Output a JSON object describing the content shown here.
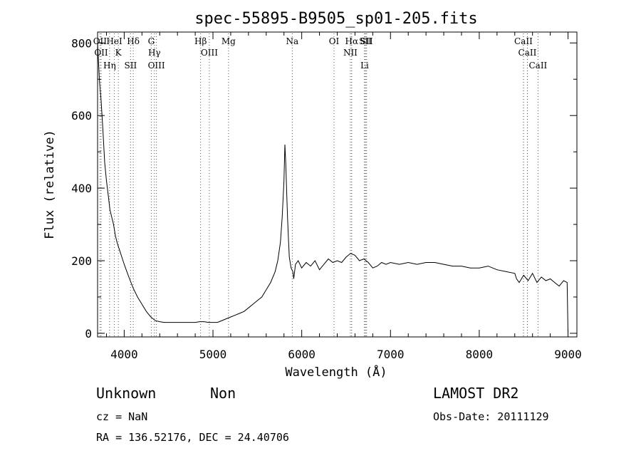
{
  "chart_data": {
    "type": "line",
    "title": "spec-55895-B9505_sp01-205.fits",
    "xlabel": "Wavelength (Å)",
    "ylabel": "Flux (relative)",
    "xlim": [
      3700,
      9100
    ],
    "ylim": [
      -10,
      830
    ],
    "xticks": [
      4000,
      5000,
      6000,
      7000,
      8000,
      9000
    ],
    "yticks": [
      0,
      200,
      400,
      600,
      800
    ],
    "spectrum": {
      "x": [
        3700,
        3720,
        3740,
        3760,
        3780,
        3800,
        3820,
        3840,
        3860,
        3880,
        3900,
        3920,
        3940,
        3960,
        3980,
        4000,
        4030,
        4060,
        4100,
        4150,
        4200,
        4250,
        4300,
        4350,
        4400,
        4450,
        4500,
        4600,
        4700,
        4800,
        4850,
        4900,
        4950,
        5000,
        5050,
        5100,
        5150,
        5200,
        5250,
        5300,
        5350,
        5400,
        5450,
        5500,
        5550,
        5600,
        5650,
        5700,
        5730,
        5760,
        5780,
        5800,
        5810,
        5820,
        5830,
        5840,
        5850,
        5860,
        5880,
        5900,
        5910,
        5930,
        5960,
        6000,
        6050,
        6100,
        6150,
        6200,
        6250,
        6300,
        6350,
        6400,
        6450,
        6500,
        6550,
        6600,
        6650,
        6700,
        6750,
        6800,
        6850,
        6900,
        6950,
        7000,
        7100,
        7200,
        7300,
        7400,
        7500,
        7600,
        7700,
        7800,
        7900,
        8000,
        8100,
        8200,
        8300,
        8400,
        8420,
        8450,
        8500,
        8550,
        8600,
        8650,
        8700,
        8750,
        8800,
        8850,
        8900,
        8950,
        8990,
        9000
      ],
      "y": [
        800,
        700,
        640,
        560,
        470,
        420,
        380,
        340,
        320,
        300,
        270,
        250,
        235,
        220,
        205,
        190,
        170,
        150,
        125,
        100,
        80,
        60,
        45,
        35,
        32,
        30,
        30,
        30,
        30,
        30,
        32,
        32,
        30,
        30,
        30,
        35,
        40,
        45,
        50,
        55,
        60,
        70,
        80,
        90,
        100,
        120,
        140,
        170,
        200,
        250,
        320,
        420,
        520,
        470,
        390,
        320,
        260,
        210,
        180,
        170,
        150,
        190,
        200,
        180,
        195,
        185,
        200,
        175,
        190,
        205,
        195,
        200,
        195,
        210,
        220,
        215,
        200,
        205,
        195,
        180,
        185,
        195,
        190,
        195,
        190,
        195,
        190,
        195,
        195,
        190,
        185,
        185,
        180,
        180,
        185,
        175,
        170,
        165,
        150,
        140,
        160,
        145,
        165,
        140,
        155,
        145,
        150,
        140,
        130,
        145,
        140,
        0
      ]
    },
    "lines": [
      {
        "name": "OII",
        "wavelength": 3727,
        "color": "#555555"
      },
      {
        "name": "OII",
        "wavelength": 3740,
        "color": "#555555"
      },
      {
        "name": "Hη",
        "wavelength": 3835,
        "color": "#555555"
      },
      {
        "name": "HeI",
        "wavelength": 3889,
        "color": "#555555"
      },
      {
        "name": "K",
        "wavelength": 3934,
        "color": "#555555"
      },
      {
        "name": "SII",
        "wavelength": 4072,
        "color": "#555555"
      },
      {
        "name": "Hδ",
        "wavelength": 4102,
        "color": "#555555"
      },
      {
        "name": "Hγ",
        "wavelength": 4340,
        "color": "#555555"
      },
      {
        "name": "G",
        "wavelength": 4305,
        "color": "#555555"
      },
      {
        "name": "OIII",
        "wavelength": 4363,
        "color": "#555555"
      },
      {
        "name": "Hβ",
        "wavelength": 4861,
        "color": "#555555"
      },
      {
        "name": "OIII",
        "wavelength": 4959,
        "color": "#555555"
      },
      {
        "name": "Mg",
        "wavelength": 5175,
        "color": "#555555"
      },
      {
        "name": "Na",
        "wavelength": 5893,
        "color": "#555555"
      },
      {
        "name": "OI",
        "wavelength": 6364,
        "color": "#555555"
      },
      {
        "name": "Hα",
        "wavelength": 6563,
        "color": "#cc0000"
      },
      {
        "name": "NII",
        "wavelength": 6548,
        "color": "#555555"
      },
      {
        "name": "Li",
        "wavelength": 6708,
        "color": "#cc0000"
      },
      {
        "name": "SII",
        "wavelength": 6717,
        "color": "#cc0000"
      },
      {
        "name": "SII",
        "wavelength": 6731,
        "color": "#cc0000"
      },
      {
        "name": "CaII",
        "wavelength": 8498,
        "color": "#cc0000"
      },
      {
        "name": "CaII",
        "wavelength": 8542,
        "color": "#cc0000"
      },
      {
        "name": "CaII",
        "wavelength": 8662,
        "color": "#555555"
      }
    ]
  },
  "info": {
    "class": "Unknown",
    "subclass": "Non",
    "survey": "LAMOST DR2",
    "cz": "cz = NaN",
    "obsdate": "Obs-Date: 20111129",
    "coords": "RA = 136.52176, DEC =  24.40706"
  }
}
